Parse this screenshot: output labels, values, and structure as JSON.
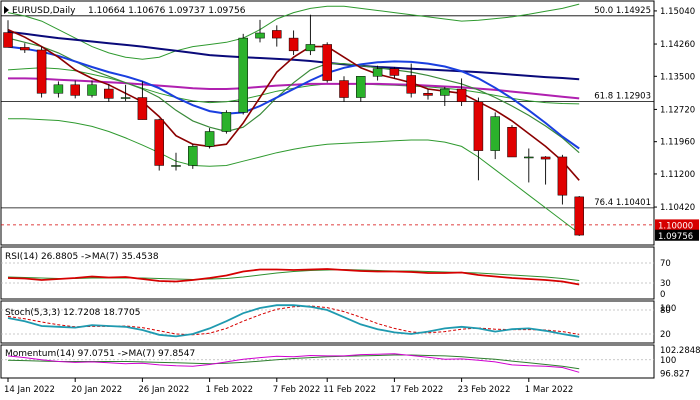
{
  "chart_data": {
    "type": "candlestick",
    "symbol_label": "EURUSD,Daily",
    "ohlc_label": "1.10664 1.10676 1.09737 1.09756",
    "x_labels": [
      "14 Jan 2022",
      "20 Jan 2022",
      "26 Jan 2022",
      "1 Feb 2022",
      "7 Feb 2022",
      "11 Feb 2022",
      "17 Feb 2022",
      "23 Feb 2022",
      "1 Mar 2022"
    ],
    "x_label_index": [
      0,
      4,
      8,
      12,
      16,
      19,
      23,
      27,
      31
    ],
    "main": {
      "y_ticks": [
        1.1504,
        1.1426,
        1.135,
        1.1272,
        1.1196,
        1.112,
        1.1042
      ],
      "y_tick_labels": [
        "1.15040",
        "1.14260",
        "1.13500",
        "1.12720",
        "1.11960",
        "1.11200",
        "1.10420"
      ],
      "ylim": [
        1.0955,
        1.1525
      ],
      "candles": [
        {
          "o": 1.1453,
          "h": 1.1482,
          "l": 1.1418,
          "c": 1.1418
        },
        {
          "o": 1.1418,
          "h": 1.1428,
          "l": 1.1405,
          "c": 1.1412
        },
        {
          "o": 1.1412,
          "h": 1.142,
          "l": 1.13,
          "c": 1.131
        },
        {
          "o": 1.131,
          "h": 1.1338,
          "l": 1.13,
          "c": 1.133
        },
        {
          "o": 1.133,
          "h": 1.134,
          "l": 1.1298,
          "c": 1.1305
        },
        {
          "o": 1.1305,
          "h": 1.134,
          "l": 1.13,
          "c": 1.133
        },
        {
          "o": 1.132,
          "h": 1.1332,
          "l": 1.129,
          "c": 1.1298
        },
        {
          "o": 1.1298,
          "h": 1.133,
          "l": 1.1292,
          "c": 1.13
        },
        {
          "o": 1.13,
          "h": 1.1338,
          "l": 1.1248,
          "c": 1.1248
        },
        {
          "o": 1.1248,
          "h": 1.125,
          "l": 1.1128,
          "c": 1.114
        },
        {
          "o": 1.114,
          "h": 1.117,
          "l": 1.1128,
          "c": 1.114
        },
        {
          "o": 1.114,
          "h": 1.119,
          "l": 1.1132,
          "c": 1.1185
        },
        {
          "o": 1.1185,
          "h": 1.1228,
          "l": 1.118,
          "c": 1.122
        },
        {
          "o": 1.122,
          "h": 1.127,
          "l": 1.1215,
          "c": 1.1265
        },
        {
          "o": 1.1265,
          "h": 1.145,
          "l": 1.126,
          "c": 1.144
        },
        {
          "o": 1.144,
          "h": 1.1483,
          "l": 1.143,
          "c": 1.1452
        },
        {
          "o": 1.1458,
          "h": 1.147,
          "l": 1.142,
          "c": 1.144
        },
        {
          "o": 1.144,
          "h": 1.1458,
          "l": 1.14,
          "c": 1.141
        },
        {
          "o": 1.141,
          "h": 1.1495,
          "l": 1.14,
          "c": 1.1425
        },
        {
          "o": 1.1425,
          "h": 1.143,
          "l": 1.1335,
          "c": 1.134
        },
        {
          "o": 1.134,
          "h": 1.135,
          "l": 1.129,
          "c": 1.13
        },
        {
          "o": 1.13,
          "h": 1.135,
          "l": 1.129,
          "c": 1.135
        },
        {
          "o": 1.135,
          "h": 1.1375,
          "l": 1.134,
          "c": 1.1368
        },
        {
          "o": 1.1368,
          "h": 1.1372,
          "l": 1.1345,
          "c": 1.1352
        },
        {
          "o": 1.1352,
          "h": 1.138,
          "l": 1.13,
          "c": 1.131
        },
        {
          "o": 1.131,
          "h": 1.132,
          "l": 1.1295,
          "c": 1.1305
        },
        {
          "o": 1.1305,
          "h": 1.1325,
          "l": 1.128,
          "c": 1.132
        },
        {
          "o": 1.132,
          "h": 1.1345,
          "l": 1.128,
          "c": 1.129
        },
        {
          "o": 1.129,
          "h": 1.13,
          "l": 1.1105,
          "c": 1.1175
        },
        {
          "o": 1.1175,
          "h": 1.1265,
          "l": 1.1155,
          "c": 1.1255
        },
        {
          "o": 1.123,
          "h": 1.1235,
          "l": 1.116,
          "c": 1.116
        },
        {
          "o": 1.116,
          "h": 1.118,
          "l": 1.11,
          "c": 1.116
        },
        {
          "o": 1.116,
          "h": 1.1162,
          "l": 1.1095,
          "c": 1.1155
        },
        {
          "o": 1.116,
          "h": 1.1165,
          "l": 1.1048,
          "c": 1.107
        },
        {
          "o": 1.1066,
          "h": 1.1068,
          "l": 1.0974,
          "c": 1.0976
        }
      ],
      "ma_dark_red": [
        1.146,
        1.1442,
        1.142,
        1.1395,
        1.1365,
        1.1345,
        1.133,
        1.131,
        1.129,
        1.1255,
        1.121,
        1.119,
        1.1185,
        1.119,
        1.124,
        1.13,
        1.136,
        1.1395,
        1.142,
        1.142,
        1.1395,
        1.137,
        1.1355,
        1.1345,
        1.1335,
        1.132,
        1.1315,
        1.131,
        1.129,
        1.127,
        1.1245,
        1.1215,
        1.1185,
        1.115,
        1.1105
      ],
      "ma_green": [
        1.144,
        1.143,
        1.142,
        1.1405,
        1.1385,
        1.1365,
        1.135,
        1.1335,
        1.132,
        1.13,
        1.127,
        1.1245,
        1.123,
        1.122,
        1.123,
        1.126,
        1.13,
        1.1335,
        1.1365,
        1.138,
        1.138,
        1.1375,
        1.137,
        1.1365,
        1.136,
        1.1352,
        1.1342,
        1.1332,
        1.1318,
        1.13,
        1.128,
        1.1258,
        1.1233,
        1.1205,
        1.117
      ],
      "ma_blue": [
        1.142,
        1.1415,
        1.1408,
        1.1398,
        1.1385,
        1.1372,
        1.136,
        1.135,
        1.1338,
        1.1322,
        1.13,
        1.1282,
        1.1268,
        1.1262,
        1.1265,
        1.128,
        1.13,
        1.132,
        1.134,
        1.1358,
        1.137,
        1.1378,
        1.1383,
        1.1385,
        1.1384,
        1.138,
        1.1373,
        1.1362,
        1.1345,
        1.1323,
        1.1298,
        1.127,
        1.124,
        1.1208,
        1.118
      ],
      "ma_navy": [
        1.1455,
        1.145,
        1.1445,
        1.144,
        1.1436,
        1.1432,
        1.1428,
        1.1424,
        1.142,
        1.1415,
        1.141,
        1.1405,
        1.14,
        1.1397,
        1.1395,
        1.1393,
        1.1391,
        1.1389,
        1.1386,
        1.1382,
        1.1378,
        1.1375,
        1.1372,
        1.137,
        1.1368,
        1.1366,
        1.1364,
        1.1362,
        1.136,
        1.1357,
        1.1354,
        1.1351,
        1.1348,
        1.1346,
        1.1343
      ],
      "ma_magenta": [
        1.1345,
        1.1345,
        1.1344,
        1.1342,
        1.134,
        1.1338,
        1.1336,
        1.1334,
        1.1331,
        1.1328,
        1.1325,
        1.1322,
        1.132,
        1.132,
        1.1322,
        1.1325,
        1.1328,
        1.133,
        1.1332,
        1.1332,
        1.1332,
        1.1332,
        1.1332,
        1.1331,
        1.133,
        1.1328,
        1.1326,
        1.1324,
        1.1321,
        1.1318,
        1.1314,
        1.131,
        1.1306,
        1.1302,
        1.1298
      ],
      "bb_upper": [
        1.15,
        1.1492,
        1.148,
        1.146,
        1.144,
        1.142,
        1.1405,
        1.1395,
        1.139,
        1.1395,
        1.141,
        1.142,
        1.1425,
        1.143,
        1.144,
        1.146,
        1.1485,
        1.15,
        1.151,
        1.1515,
        1.1515,
        1.151,
        1.1505,
        1.15,
        1.1495,
        1.149,
        1.1485,
        1.148,
        1.1482,
        1.1486,
        1.149,
        1.1496,
        1.1503,
        1.151,
        1.152
      ],
      "bb_lower": [
        1.125,
        1.125,
        1.1248,
        1.1246,
        1.124,
        1.1232,
        1.122,
        1.1205,
        1.1188,
        1.117,
        1.115,
        1.114,
        1.1138,
        1.114,
        1.115,
        1.116,
        1.117,
        1.1178,
        1.1185,
        1.119,
        1.1192,
        1.1194,
        1.1196,
        1.1198,
        1.12,
        1.12,
        1.1195,
        1.1185,
        1.116,
        1.113,
        1.11,
        1.107,
        1.104,
        1.101,
        1.098
      ],
      "bb_mid": [
        1.1365,
        1.1368,
        1.137,
        1.1368,
        1.1363,
        1.1355,
        1.1346,
        1.1335,
        1.1322,
        1.131,
        1.13,
        1.1292,
        1.1288,
        1.129,
        1.1296,
        1.1305,
        1.1315,
        1.1322,
        1.1328,
        1.1332,
        1.1333,
        1.1332,
        1.133,
        1.1329,
        1.1327,
        1.1325,
        1.1322,
        1.1318,
        1.1312,
        1.1305,
        1.1298,
        1.1292,
        1.1288,
        1.1286,
        1.1285
      ],
      "levels": [
        {
          "label": "50.0 1.14925",
          "value": 1.14925
        },
        {
          "label": "61.8 1.12903",
          "value": 1.12903
        },
        {
          "label": "76.4 1.10401",
          "value": 1.10401
        },
        {
          "label": "1.10000",
          "value": 1.1,
          "style": "dash",
          "tag": true,
          "color": "#d60000"
        },
        {
          "label": "1.09756",
          "value": 1.09756,
          "style": "none",
          "tag": true,
          "color": "#000000"
        }
      ]
    },
    "rsi": {
      "title": "RSI(14) 26.8805 ->MA(7) 35.4538",
      "ticks": [
        70,
        30,
        0
      ],
      "tick_labels": [
        "70",
        "30",
        "0"
      ],
      "ylim": [
        0,
        100
      ],
      "rsi": [
        40,
        39,
        36,
        38,
        40,
        43,
        41,
        42,
        38,
        34,
        33,
        36,
        40,
        45,
        53,
        57,
        57,
        56,
        57,
        58,
        56,
        54,
        53,
        53,
        52,
        50,
        50,
        51,
        46,
        43,
        40,
        38,
        36,
        33,
        27
      ],
      "ma": [
        42,
        41,
        40,
        39,
        39,
        40,
        40,
        40,
        40,
        39,
        38,
        37,
        38,
        39,
        42,
        46,
        50,
        53,
        55,
        56,
        57,
        56,
        55,
        54,
        54,
        53,
        52,
        51,
        50,
        48,
        46,
        44,
        42,
        39,
        35
      ]
    },
    "stoch": {
      "title": "Stoch(5,3,3) 12.7208 18.7705",
      "ticks": [
        80,
        20
      ],
      "tick_labels": [
        "80",
        "20"
      ],
      "extra_label": "100",
      "ylim": [
        0,
        100
      ],
      "k": [
        60,
        52,
        40,
        38,
        36,
        42,
        40,
        38,
        30,
        18,
        14,
        20,
        34,
        52,
        72,
        85,
        92,
        92,
        88,
        80,
        62,
        44,
        32,
        24,
        20,
        26,
        34,
        38,
        34,
        26,
        32,
        34,
        28,
        20,
        13
      ],
      "d": [
        64,
        58,
        50,
        43,
        38,
        39,
        39,
        40,
        36,
        28,
        20,
        18,
        22,
        34,
        52,
        68,
        82,
        88,
        90,
        86,
        76,
        62,
        46,
        34,
        25,
        23,
        26,
        32,
        35,
        32,
        31,
        31,
        30,
        26,
        19
      ]
    },
    "momentum": {
      "title": "Momentum(14) 97.0751 ->MA(7) 97.8547",
      "ticks": [
        102.2848,
        100,
        96.827
      ],
      "tick_labels": [
        "102.2848",
        "100",
        "96.827"
      ],
      "ylim": [
        96.0,
        103.2
      ],
      "mom": [
        100.9,
        100.5,
        100.0,
        99.6,
        99.4,
        99.5,
        99.3,
        99.1,
        99.2,
        98.8,
        98.6,
        98.5,
        98.9,
        99.5,
        100.1,
        100.5,
        100.8,
        100.7,
        101.0,
        100.9,
        100.9,
        101.2,
        101.3,
        101.4,
        101.0,
        100.6,
        100.1,
        100.2,
        99.9,
        99.5,
        98.8,
        98.6,
        98.5,
        98.2,
        97.1
      ],
      "ma": [
        99.9,
        99.8,
        99.7,
        99.6,
        99.6,
        99.6,
        99.6,
        99.6,
        99.5,
        99.4,
        99.3,
        99.2,
        99.1,
        99.2,
        99.4,
        99.7,
        100.0,
        100.3,
        100.5,
        100.7,
        100.8,
        100.9,
        101.0,
        101.1,
        101.1,
        101.0,
        100.9,
        100.7,
        100.4,
        100.1,
        99.7,
        99.3,
        98.9,
        98.5,
        97.9
      ]
    },
    "colors": {
      "bull": "#2bb22b",
      "bear": "#e00000",
      "ma_dark_red": "#8b0000",
      "ma_green": "#3a8a3a",
      "ma_blue": "#1a3fe0",
      "ma_navy": "#0a0a7a",
      "ma_magenta": "#b020b0",
      "bb": "#2f9a2f",
      "rsi": "#d60000",
      "rsi_ma": "#2f8f2f",
      "stoch_k": "#1f9ab0",
      "stoch_d": "#d60000",
      "mom": "#d000d0",
      "mom_ma": "#2f7f2f",
      "grid": "#b8b8b8"
    }
  }
}
